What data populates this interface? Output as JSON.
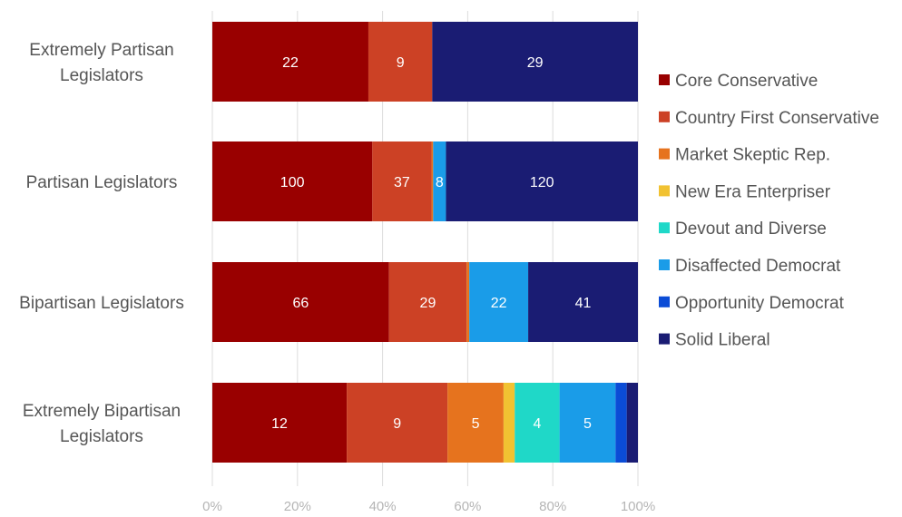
{
  "chart_data": {
    "type": "bar",
    "orientation": "horizontal",
    "stacked": "percent",
    "title": "",
    "xlabel": "",
    "ylabel": "",
    "xlim": [
      0,
      100
    ],
    "x_ticks": [
      "0%",
      "20%",
      "40%",
      "60%",
      "80%",
      "100%"
    ],
    "grid": true,
    "legend_position": "right",
    "categories": [
      [
        "Extremely Partisan",
        "Legislators"
      ],
      [
        "Partisan Legislators"
      ],
      [
        "Bipartisan Legislators"
      ],
      [
        "Extremely Bipartisan",
        "Legislators"
      ]
    ],
    "series": [
      {
        "name": "Core Conservative",
        "color": "#990000",
        "values": [
          22,
          100,
          66,
          12
        ],
        "labels": [
          "22",
          "100",
          "66",
          "12"
        ]
      },
      {
        "name": "Country First Conservative",
        "color": "#CC4125",
        "values": [
          9,
          37,
          29,
          9
        ],
        "labels": [
          "9",
          "37",
          "29",
          "9"
        ]
      },
      {
        "name": "Market Skeptic Rep.",
        "color": "#E6731E",
        "values": [
          0,
          1,
          1,
          5
        ],
        "labels": [
          "",
          "",
          "",
          "5"
        ]
      },
      {
        "name": "New Era Enterpriser",
        "color": "#F1C232",
        "values": [
          0,
          0,
          0,
          1
        ],
        "labels": [
          "",
          "",
          "",
          ""
        ]
      },
      {
        "name": "Devout and Diverse",
        "color": "#1FD8C8",
        "values": [
          0,
          0,
          0,
          4
        ],
        "labels": [
          "",
          "",
          "",
          "4"
        ]
      },
      {
        "name": "Disaffected Democrat",
        "color": "#1A9CE8",
        "values": [
          0,
          8,
          22,
          5
        ],
        "labels": [
          "",
          "8",
          "22",
          "5"
        ]
      },
      {
        "name": "Opportunity Democrat",
        "color": "#0B4CD6",
        "values": [
          0,
          0,
          0,
          1
        ],
        "labels": [
          "",
          "",
          "",
          ""
        ]
      },
      {
        "name": "Solid Liberal",
        "color": "#1A1C73",
        "values": [
          29,
          120,
          41,
          1
        ],
        "labels": [
          "29",
          "120",
          "41",
          ""
        ]
      }
    ]
  }
}
